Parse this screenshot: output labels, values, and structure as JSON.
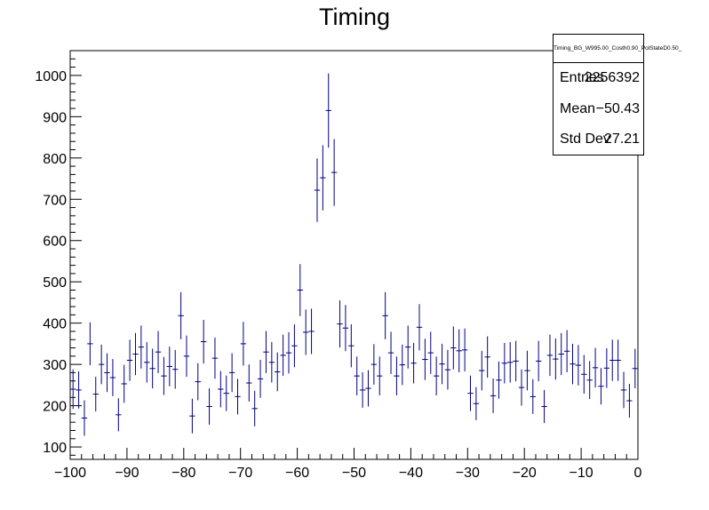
{
  "chart_data": {
    "type": "scatter",
    "title": "Timing",
    "xlabel": "",
    "ylabel": "",
    "xlim": [
      -100,
      0
    ],
    "ylim": [
      70,
      1060
    ],
    "xticks": [
      -100,
      -90,
      -80,
      -70,
      -60,
      -50,
      -40,
      -30,
      -20,
      -10,
      0
    ],
    "yticks": [
      100,
      200,
      300,
      400,
      500,
      600,
      700,
      800,
      900,
      1000
    ],
    "xtick_labels": [
      "−100",
      "−90",
      "−80",
      "−70",
      "−60",
      "−50",
      "−40",
      "−30",
      "−20",
      "−10",
      "0"
    ],
    "ytick_labels": [
      "100",
      "200",
      "300",
      "400",
      "500",
      "600",
      "700",
      "800",
      "900",
      "1000"
    ],
    "bin_width": 1,
    "color": "#000080",
    "grid": false,
    "stats": {
      "name": "Timing_BG_W995.00_Costh0.90_PolStateD0.50_",
      "entries_label": "Entries",
      "entries": "2256392",
      "mean_label": "Mean",
      "mean": "−50.43",
      "std_label": "Std Dev",
      "std": "27.21"
    },
    "x": [
      -99.5,
      -98.5,
      -97.5,
      -96.5,
      -95.5,
      -94.5,
      -93.5,
      -92.5,
      -91.5,
      -90.5,
      -89.5,
      -88.5,
      -87.5,
      -86.5,
      -85.5,
      -84.5,
      -83.5,
      -82.5,
      -81.5,
      -80.5,
      -79.5,
      -78.5,
      -77.5,
      -76.5,
      -75.5,
      -74.5,
      -73.5,
      -72.5,
      -71.5,
      -70.5,
      -69.5,
      -68.5,
      -67.5,
      -66.5,
      -65.5,
      -64.5,
      -63.5,
      -62.5,
      -61.5,
      -60.5,
      -59.5,
      -58.5,
      -57.5,
      -56.5,
      -55.5,
      -54.5,
      -53.5,
      -52.5,
      -51.5,
      -50.5,
      -49.5,
      -48.5,
      -47.5,
      -46.5,
      -45.5,
      -44.5,
      -43.5,
      -42.5,
      -41.5,
      -40.5,
      -39.5,
      -38.5,
      -37.5,
      -36.5,
      -35.5,
      -34.5,
      -33.5,
      -32.5,
      -31.5,
      -30.5,
      -29.5,
      -28.5,
      -27.5,
      -26.5,
      -25.5,
      -24.5,
      -23.5,
      -22.5,
      -21.5,
      -20.5,
      -19.5,
      -18.5,
      -17.5,
      -16.5,
      -15.5,
      -14.5,
      -13.5,
      -12.5,
      -11.5,
      -10.5,
      -9.5,
      -8.5,
      -7.5,
      -6.5,
      -5.5,
      -4.5,
      -3.5,
      -2.5,
      -1.5,
      -0.5
    ],
    "y": [
      240,
      238,
      170,
      350,
      228,
      300,
      280,
      268,
      178,
      253,
      310,
      325,
      342,
      305,
      290,
      330,
      272,
      295,
      288,
      418,
      320,
      175,
      258,
      355,
      198,
      315,
      240,
      230,
      280,
      222,
      350,
      255,
      193,
      265,
      330,
      305,
      282,
      322,
      328,
      345,
      480,
      378,
      380,
      722,
      752,
      915,
      765,
      398,
      388,
      345,
      272,
      238,
      242,
      300,
      272,
      418,
      328,
      272,
      299,
      342,
      303,
      390,
      312,
      328,
      272,
      301,
      287,
      340,
      333,
      335,
      230,
      205,
      285,
      318,
      224,
      262,
      303,
      305,
      308,
      244,
      285,
      222,
      308,
      198,
      322,
      313,
      325,
      332,
      301,
      298,
      276,
      262,
      292,
      247,
      291,
      310,
      310,
      238,
      212,
      290
    ],
    "yerr": [
      48,
      45,
      43,
      52,
      42,
      48,
      47,
      45,
      40,
      46,
      50,
      51,
      52,
      49,
      48,
      51,
      46,
      48,
      47,
      57,
      50,
      42,
      45,
      53,
      44,
      50,
      44,
      43,
      47,
      43,
      53,
      45,
      43,
      46,
      51,
      49,
      47,
      50,
      50,
      52,
      63,
      55,
      55,
      77,
      79,
      90,
      81,
      57,
      56,
      52,
      47,
      43,
      44,
      49,
      47,
      57,
      51,
      47,
      49,
      52,
      49,
      56,
      50,
      51,
      47,
      49,
      48,
      52,
      52,
      52,
      43,
      40,
      48,
      50,
      42,
      45,
      49,
      49,
      49,
      44,
      48,
      42,
      49,
      40,
      50,
      50,
      51,
      51,
      49,
      49,
      47,
      46,
      48,
      44,
      48,
      50,
      50,
      44,
      41,
      48
    ]
  }
}
